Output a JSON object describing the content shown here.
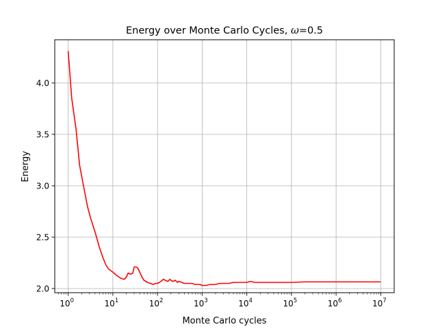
{
  "chart_data": {
    "type": "line",
    "title": "Energy over Monte Carlo Cycles, ",
    "title_symbol": "ω",
    "title_suffix": "=0.5",
    "xlabel": "Monte Carlo cycles",
    "ylabel": "Energy",
    "xscale": "log",
    "xlim": [
      0.5,
      20000000
    ],
    "ylim": [
      1.96,
      4.42
    ],
    "grid": true,
    "x_ticks": [
      {
        "value": 1,
        "base": "10",
        "exp": "0"
      },
      {
        "value": 10,
        "base": "10",
        "exp": "1"
      },
      {
        "value": 100,
        "base": "10",
        "exp": "2"
      },
      {
        "value": 1000,
        "base": "10",
        "exp": "3"
      },
      {
        "value": 10000,
        "base": "10",
        "exp": "4"
      },
      {
        "value": 100000,
        "base": "10",
        "exp": "5"
      },
      {
        "value": 1000000,
        "base": "10",
        "exp": "6"
      },
      {
        "value": 10000000,
        "base": "10",
        "exp": "7"
      }
    ],
    "y_ticks": [
      {
        "value": 2.0,
        "label": "2.0"
      },
      {
        "value": 2.5,
        "label": "2.5"
      },
      {
        "value": 3.0,
        "label": "3.0"
      },
      {
        "value": 3.5,
        "label": "3.5"
      },
      {
        "value": 4.0,
        "label": "4.0"
      }
    ],
    "series": [
      {
        "color": "#ff0000",
        "x": [
          1,
          1.2,
          1.5,
          1.8,
          2.2,
          2.7,
          3.2,
          4,
          5,
          6,
          7,
          8,
          10,
          12,
          15,
          18,
          20,
          22,
          25,
          28,
          30,
          33,
          36,
          40,
          45,
          50,
          60,
          70,
          80,
          90,
          100,
          110,
          120,
          135,
          150,
          170,
          190,
          200,
          220,
          250,
          280,
          300,
          350,
          400,
          500,
          600,
          700,
          800,
          900,
          1000,
          1200,
          1500,
          2000,
          2500,
          3000,
          4000,
          5000,
          6000,
          7000,
          8000,
          9000,
          10000,
          12000,
          15000,
          20000,
          30000,
          40000,
          50000,
          70000,
          100000,
          200000,
          500000,
          1000000,
          2000000,
          5000000,
          10000000
        ],
        "y": [
          4.31,
          3.85,
          3.55,
          3.2,
          3.0,
          2.8,
          2.68,
          2.55,
          2.4,
          2.3,
          2.23,
          2.19,
          2.16,
          2.13,
          2.1,
          2.09,
          2.11,
          2.15,
          2.14,
          2.15,
          2.21,
          2.21,
          2.2,
          2.16,
          2.11,
          2.08,
          2.06,
          2.05,
          2.04,
          2.05,
          2.05,
          2.06,
          2.07,
          2.09,
          2.08,
          2.07,
          2.09,
          2.08,
          2.07,
          2.08,
          2.06,
          2.07,
          2.06,
          2.05,
          2.05,
          2.05,
          2.04,
          2.04,
          2.04,
          2.03,
          2.03,
          2.04,
          2.04,
          2.05,
          2.05,
          2.05,
          2.06,
          2.06,
          2.06,
          2.06,
          2.06,
          2.06,
          2.07,
          2.06,
          2.06,
          2.06,
          2.06,
          2.06,
          2.06,
          2.06,
          2.065,
          2.065,
          2.065,
          2.065,
          2.065,
          2.065
        ]
      }
    ]
  }
}
